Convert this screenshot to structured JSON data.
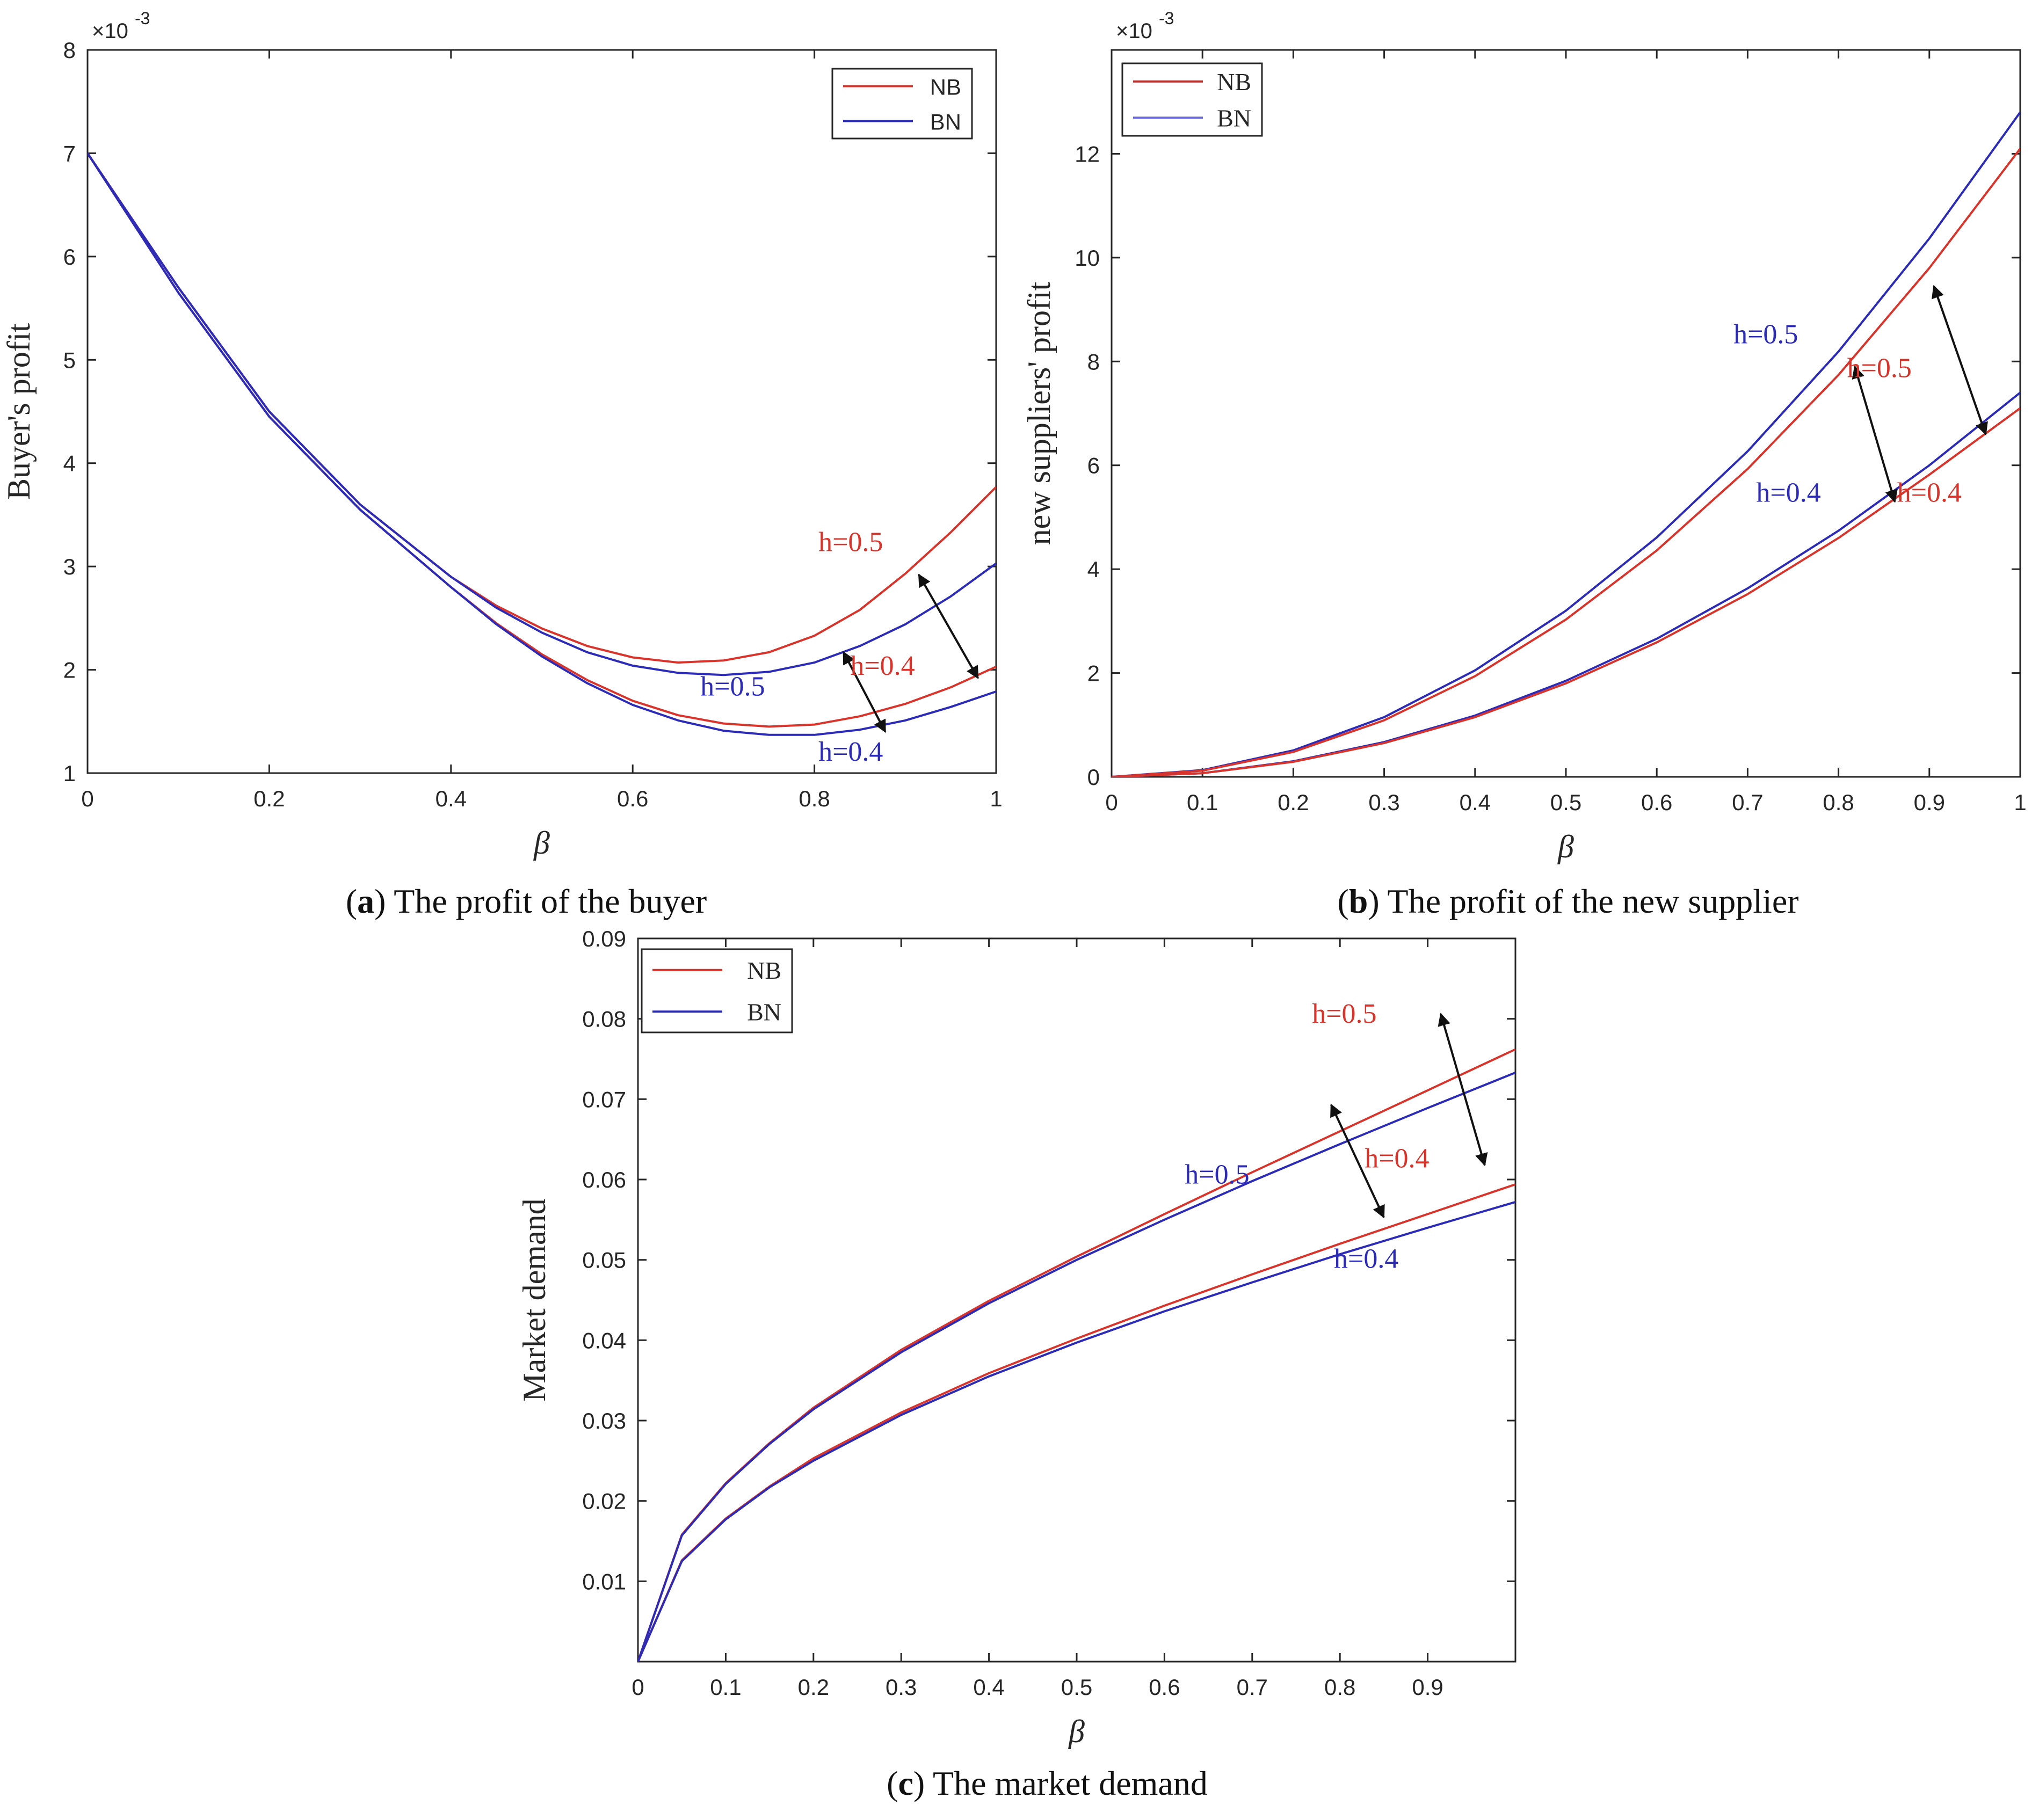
{
  "chart_data": [
    {
      "type": "line",
      "id": "a",
      "caption_letter": "a",
      "caption_text": "The profit of the buyer",
      "xlabel": "β",
      "ylabel": "Buyer's profit",
      "exponent": "×10",
      "exponent_power": "-3",
      "xlim": [
        0,
        1
      ],
      "ylim": [
        1,
        8
      ],
      "xticks": [
        0,
        0.2,
        0.4,
        0.6,
        0.8,
        1
      ],
      "xtick_labels": [
        "0",
        "0.2",
        "0.4",
        "0.6",
        "0.8",
        "1"
      ],
      "yticks": [
        1,
        2,
        3,
        4,
        5,
        6,
        7,
        8
      ],
      "ytick_labels": [
        "1",
        "2",
        "3",
        "4",
        "5",
        "6",
        "7",
        "8"
      ],
      "legend": {
        "position": "top-right",
        "entries": [
          {
            "label": "NB",
            "color": "#d9342b"
          },
          {
            "label": "BN",
            "color": "#2b2bb8"
          }
        ]
      },
      "x": [
        0,
        0.1,
        0.2,
        0.3,
        0.4,
        0.45,
        0.5,
        0.55,
        0.6,
        0.65,
        0.7,
        0.75,
        0.8,
        0.85,
        0.9,
        0.95,
        1.0
      ],
      "series": [
        {
          "name": "NB h=0.5",
          "color": "#d9342b",
          "values": [
            7.0,
            5.7,
            4.5,
            3.6,
            2.9,
            2.62,
            2.4,
            2.23,
            2.12,
            2.07,
            2.09,
            2.17,
            2.33,
            2.58,
            2.93,
            3.33,
            3.77
          ]
        },
        {
          "name": "BN h=0.5",
          "color": "#2b2bb8",
          "values": [
            7.0,
            5.7,
            4.5,
            3.6,
            2.9,
            2.6,
            2.36,
            2.17,
            2.04,
            1.97,
            1.95,
            1.98,
            2.07,
            2.23,
            2.44,
            2.71,
            3.03
          ]
        },
        {
          "name": "NB h=0.4",
          "color": "#d9342b",
          "values": [
            7.0,
            5.65,
            4.45,
            3.55,
            2.8,
            2.45,
            2.15,
            1.9,
            1.7,
            1.56,
            1.48,
            1.45,
            1.47,
            1.55,
            1.67,
            1.83,
            2.03
          ]
        },
        {
          "name": "BN h=0.4",
          "color": "#2b2bb8",
          "values": [
            7.0,
            5.65,
            4.45,
            3.55,
            2.8,
            2.44,
            2.13,
            1.87,
            1.66,
            1.51,
            1.41,
            1.37,
            1.37,
            1.42,
            1.51,
            1.64,
            1.79
          ]
        }
      ],
      "annotations": [
        {
          "text": "h=0.5",
          "color": "#d9342b",
          "x": 0.84,
          "y": 3.15
        },
        {
          "text": "h=0.5",
          "color": "#2b2bb8",
          "x": 0.71,
          "y": 1.75
        },
        {
          "text": "h=0.4",
          "color": "#d9342b",
          "x": 0.875,
          "y": 1.95
        },
        {
          "text": "h=0.4",
          "color": "#2b2bb8",
          "x": 0.84,
          "y": 1.12
        }
      ],
      "arrows": [
        {
          "x1": 0.915,
          "y1": 2.92,
          "x2": 0.98,
          "y2": 1.92
        },
        {
          "x1": 0.832,
          "y1": 2.17,
          "x2": 0.878,
          "y2": 1.4
        }
      ]
    },
    {
      "type": "line",
      "id": "b",
      "caption_letter": "b",
      "caption_text": "The profit of the new supplier",
      "xlabel": "β",
      "ylabel": "new suppliers' profit",
      "exponent": "×10",
      "exponent_power": "-3",
      "xlim": [
        0,
        1
      ],
      "ylim": [
        0,
        14
      ],
      "xticks": [
        0,
        0.1,
        0.2,
        0.3,
        0.4,
        0.5,
        0.6,
        0.7,
        0.8,
        0.9,
        1
      ],
      "xtick_labels": [
        "0",
        "0.1",
        "0.2",
        "0.3",
        "0.4",
        "0.5",
        "0.6",
        "0.7",
        "0.8",
        "0.9",
        "1"
      ],
      "yticks": [
        0,
        2,
        4,
        6,
        8,
        10,
        12
      ],
      "ytick_labels": [
        "0",
        "2",
        "4",
        "6",
        "8",
        "10",
        "12"
      ],
      "legend": {
        "position": "top-left",
        "entries": [
          {
            "label": "NB",
            "color": "#b8322e"
          },
          {
            "label": "BN",
            "color": "#6b6bd6"
          }
        ]
      },
      "x": [
        0,
        0.1,
        0.2,
        0.3,
        0.4,
        0.5,
        0.6,
        0.7,
        0.8,
        0.9,
        1.0
      ],
      "series": [
        {
          "name": "BN h=0.5",
          "color": "#2b2bb8",
          "values": [
            0,
            0.13,
            0.51,
            1.15,
            2.05,
            3.2,
            4.61,
            6.27,
            8.19,
            10.37,
            12.8
          ]
        },
        {
          "name": "NB h=0.5",
          "color": "#d9342b",
          "values": [
            0,
            0.12,
            0.48,
            1.09,
            1.94,
            3.03,
            4.36,
            5.93,
            7.74,
            9.8,
            12.1
          ]
        },
        {
          "name": "BN h=0.4",
          "color": "#2b2bb8",
          "values": [
            0,
            0.07,
            0.3,
            0.67,
            1.18,
            1.85,
            2.66,
            3.63,
            4.74,
            6.0,
            7.4
          ]
        },
        {
          "name": "NB h=0.4",
          "color": "#d9342b",
          "values": [
            0,
            0.07,
            0.29,
            0.65,
            1.15,
            1.8,
            2.59,
            3.52,
            4.6,
            5.82,
            7.1
          ]
        }
      ],
      "annotations": [
        {
          "text": "h=0.5",
          "color": "#2b2bb8",
          "x": 0.72,
          "y": 8.35
        },
        {
          "text": "h=0.5",
          "color": "#d9342b",
          "x": 0.845,
          "y": 7.7
        },
        {
          "text": "h=0.4",
          "color": "#2b2bb8",
          "x": 0.745,
          "y": 5.3
        },
        {
          "text": "h=0.4",
          "color": "#d9342b",
          "x": 0.9,
          "y": 5.3
        }
      ],
      "arrows": [
        {
          "x1": 0.818,
          "y1": 7.9,
          "x2": 0.862,
          "y2": 5.3
        },
        {
          "x1": 0.905,
          "y1": 9.45,
          "x2": 0.962,
          "y2": 6.6
        }
      ]
    },
    {
      "type": "line",
      "id": "c",
      "caption_letter": "c",
      "caption_text": "The market demand",
      "xlabel": "β",
      "ylabel": "Market demand",
      "xlim": [
        0,
        1
      ],
      "ylim": [
        0,
        0.09
      ],
      "xticks": [
        0,
        0.1,
        0.2,
        0.3,
        0.4,
        0.5,
        0.6,
        0.7,
        0.8,
        0.9
      ],
      "xtick_labels": [
        "0",
        "0.1",
        "0.2",
        "0.3",
        "0.4",
        "0.5",
        "0.6",
        "0.7",
        "0.8",
        "0.9"
      ],
      "yticks": [
        0.01,
        0.02,
        0.03,
        0.04,
        0.05,
        0.06,
        0.07,
        0.08,
        0.09
      ],
      "ytick_labels": [
        "0.01",
        "0.02",
        "0.03",
        "0.04",
        "0.05",
        "0.06",
        "0.07",
        "0.08",
        "0.09"
      ],
      "legend": {
        "position": "top-left",
        "entries": [
          {
            "label": "NB",
            "color": "#d9342b"
          },
          {
            "label": "BN",
            "color": "#2b2bb8"
          }
        ]
      },
      "x": [
        0,
        0.05,
        0.1,
        0.15,
        0.2,
        0.3,
        0.4,
        0.5,
        0.6,
        0.7,
        0.8,
        0.9,
        1.0
      ],
      "series": [
        {
          "name": "NB h=0.5",
          "color": "#d9342b",
          "values": [
            0,
            0.0158,
            0.0222,
            0.0272,
            0.0316,
            0.0388,
            0.0449,
            0.0504,
            0.0557,
            0.0609,
            0.066,
            0.0711,
            0.0762
          ]
        },
        {
          "name": "BN h=0.5",
          "color": "#2b2bb8",
          "values": [
            0,
            0.0157,
            0.0221,
            0.0271,
            0.0314,
            0.0385,
            0.0446,
            0.05,
            0.055,
            0.0598,
            0.0644,
            0.0689,
            0.0733
          ]
        },
        {
          "name": "NB h=0.4",
          "color": "#d9342b",
          "values": [
            0,
            0.0126,
            0.0178,
            0.0218,
            0.0253,
            0.031,
            0.0359,
            0.0402,
            0.0443,
            0.0482,
            0.052,
            0.0557,
            0.0594
          ]
        },
        {
          "name": "BN h=0.4",
          "color": "#2b2bb8",
          "values": [
            0,
            0.0125,
            0.0177,
            0.0217,
            0.025,
            0.0307,
            0.0355,
            0.0397,
            0.0436,
            0.0472,
            0.0507,
            0.054,
            0.0572
          ]
        }
      ],
      "annotations": [
        {
          "text": "h=0.5",
          "color": "#d9342b",
          "x": 0.805,
          "y": 0.0795
        },
        {
          "text": "h=0.5",
          "color": "#2b2bb8",
          "x": 0.66,
          "y": 0.0595
        },
        {
          "text": "h=0.4",
          "color": "#d9342b",
          "x": 0.865,
          "y": 0.0615
        },
        {
          "text": "h=0.4",
          "color": "#2b2bb8",
          "x": 0.83,
          "y": 0.049
        }
      ],
      "arrows": [
        {
          "x1": 0.915,
          "y1": 0.0806,
          "x2": 0.965,
          "y2": 0.0618
        },
        {
          "x1": 0.79,
          "y1": 0.0693,
          "x2": 0.85,
          "y2": 0.0553
        }
      ]
    }
  ]
}
